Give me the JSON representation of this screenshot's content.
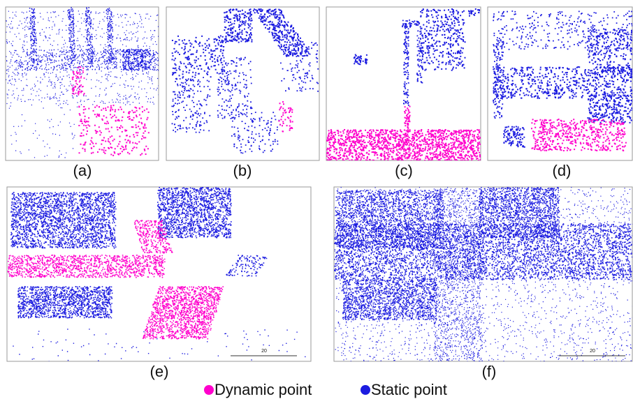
{
  "panels": [
    {
      "label": "(a)"
    },
    {
      "label": "(b)"
    },
    {
      "label": "(c)"
    },
    {
      "label": "(d)"
    },
    {
      "label": "(e)",
      "scale_label": "20"
    },
    {
      "label": "(f)",
      "scale_label": "20"
    }
  ],
  "legend": [
    {
      "label": "Dynamic point",
      "color": "#ff00cc"
    },
    {
      "label": "Static point",
      "color": "#1c1ce0"
    }
  ]
}
